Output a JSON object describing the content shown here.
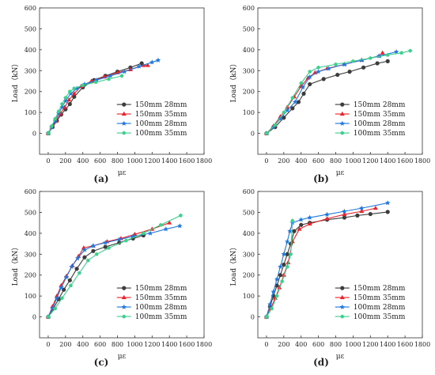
{
  "figure": {
    "colors": {
      "s150_28": "#3c3c3c",
      "s150_35": "#e8232a",
      "s100_28": "#1f77e0",
      "s100_35": "#3ccf8e"
    }
  },
  "chart_data": [
    {
      "type": "line",
      "panel": "(a)",
      "xlabel": "με",
      "ylabel": "Load（kN）",
      "xlim": [
        -100,
        1800
      ],
      "ylim": [
        -100,
        600
      ],
      "xticks": [
        0,
        200,
        400,
        600,
        800,
        1000,
        1200,
        1400,
        1600,
        1800
      ],
      "yticks": [
        0,
        100,
        200,
        300,
        400,
        500,
        600
      ],
      "legend_position": "bottom-right",
      "series": [
        {
          "name": "150mm 28mm",
          "color": "#3c3c3c",
          "marker": "circle",
          "x": [
            0,
            50,
            100,
            150,
            200,
            250,
            300,
            400,
            530,
            660,
            800,
            950,
            1080
          ],
          "y": [
            0,
            30,
            60,
            90,
            115,
            140,
            175,
            220,
            255,
            275,
            295,
            315,
            335
          ]
        },
        {
          "name": "150mm 35mm",
          "color": "#e8232a",
          "marker": "triangle",
          "x": [
            0,
            40,
            90,
            140,
            190,
            240,
            300,
            380,
            500,
            650,
            800,
            950,
            1100,
            1150
          ],
          "y": [
            0,
            30,
            60,
            95,
            125,
            160,
            190,
            225,
            250,
            270,
            290,
            305,
            325,
            325
          ]
        },
        {
          "name": "100mm 28mm",
          "color": "#1f77e0",
          "marker": "star",
          "x": [
            0,
            40,
            80,
            120,
            160,
            200,
            260,
            330,
            420,
            560,
            720,
            880,
            1050,
            1200,
            1270
          ],
          "y": [
            0,
            30,
            60,
            95,
            125,
            155,
            190,
            215,
            235,
            255,
            275,
            295,
            320,
            340,
            350
          ]
        },
        {
          "name": "100mm 35mm",
          "color": "#3ccf8e",
          "marker": "pentagon",
          "x": [
            0,
            40,
            80,
            120,
            160,
            200,
            250,
            300,
            400,
            550,
            700,
            850
          ],
          "y": [
            0,
            35,
            70,
            105,
            140,
            170,
            200,
            215,
            230,
            245,
            260,
            275
          ]
        }
      ]
    },
    {
      "type": "line",
      "panel": "(b)",
      "xlabel": "με",
      "ylabel": "Load（kN）",
      "xlim": [
        -100,
        1800
      ],
      "ylim": [
        -100,
        600
      ],
      "xticks": [
        0,
        200,
        400,
        600,
        800,
        1000,
        1200,
        1400,
        1600,
        1800
      ],
      "yticks": [
        0,
        100,
        200,
        300,
        400,
        500,
        600
      ],
      "legend_position": "bottom-right",
      "series": [
        {
          "name": "150mm 28mm",
          "color": "#3c3c3c",
          "marker": "circle",
          "x": [
            0,
            100,
            200,
            300,
            370,
            430,
            500,
            660,
            820,
            960,
            1120,
            1280,
            1400
          ],
          "y": [
            0,
            30,
            75,
            120,
            150,
            190,
            235,
            260,
            280,
            295,
            315,
            335,
            345
          ]
        },
        {
          "name": "150mm 35mm",
          "color": "#e8232a",
          "marker": "triangle",
          "x": [
            0,
            80,
            160,
            240,
            320,
            400,
            480,
            560,
            700,
            900,
            1100,
            1300,
            1340
          ],
          "y": [
            0,
            35,
            80,
            125,
            175,
            225,
            265,
            290,
            310,
            330,
            350,
            370,
            385
          ]
        },
        {
          "name": "100mm 28mm",
          "color": "#1f77e0",
          "marker": "star",
          "x": [
            0,
            80,
            160,
            240,
            330,
            420,
            500,
            600,
            720,
            900,
            1100,
            1300,
            1500
          ],
          "y": [
            0,
            30,
            70,
            110,
            150,
            220,
            270,
            295,
            310,
            330,
            350,
            370,
            390
          ]
        },
        {
          "name": "100mm 35mm",
          "color": "#3ccf8e",
          "marker": "pentagon",
          "x": [
            0,
            100,
            200,
            300,
            400,
            500,
            600,
            800,
            1000,
            1200,
            1400,
            1560,
            1660
          ],
          "y": [
            0,
            40,
            100,
            170,
            240,
            295,
            315,
            330,
            345,
            360,
            375,
            385,
            395
          ]
        }
      ]
    },
    {
      "type": "line",
      "panel": "(c)",
      "xlabel": "με",
      "ylabel": "Load（kN）",
      "xlim": [
        -100,
        1800
      ],
      "ylim": [
        -100,
        600
      ],
      "xticks": [
        0,
        200,
        400,
        600,
        800,
        1000,
        1200,
        1400,
        1600,
        1800
      ],
      "yticks": [
        0,
        100,
        200,
        300,
        400,
        500,
        600
      ],
      "legend_position": "bottom-right",
      "series": [
        {
          "name": "150mm 28mm",
          "color": "#3c3c3c",
          "marker": "circle",
          "x": [
            0,
            60,
            120,
            180,
            250,
            330,
            420,
            520,
            660,
            820,
            980,
            1100
          ],
          "y": [
            0,
            40,
            85,
            130,
            175,
            230,
            285,
            315,
            335,
            355,
            375,
            390
          ]
        },
        {
          "name": "150mm 35mm",
          "color": "#e8232a",
          "marker": "triangle",
          "x": [
            0,
            50,
            100,
            150,
            210,
            280,
            350,
            410,
            520,
            680,
            840,
            1000,
            1200,
            1400
          ],
          "y": [
            0,
            50,
            100,
            150,
            195,
            245,
            290,
            330,
            340,
            360,
            375,
            395,
            420,
            450
          ]
        },
        {
          "name": "100mm 28mm",
          "color": "#1f77e0",
          "marker": "star",
          "x": [
            0,
            50,
            100,
            150,
            210,
            270,
            340,
            420,
            520,
            660,
            820,
            980,
            1180,
            1360,
            1520
          ],
          "y": [
            0,
            40,
            90,
            140,
            190,
            240,
            280,
            320,
            340,
            355,
            370,
            385,
            400,
            420,
            435
          ]
        },
        {
          "name": "100mm 35mm",
          "color": "#3ccf8e",
          "marker": "pentagon",
          "x": [
            0,
            80,
            160,
            260,
            360,
            460,
            560,
            700,
            900,
            1100,
            1300,
            1530
          ],
          "y": [
            0,
            40,
            90,
            150,
            210,
            270,
            300,
            330,
            365,
            400,
            440,
            485
          ]
        }
      ]
    },
    {
      "type": "line",
      "panel": "(d)",
      "xlabel": "με",
      "ylabel": "Load（kN）",
      "xlim": [
        -100,
        1800
      ],
      "ylim": [
        -100,
        600
      ],
      "xticks": [
        0,
        200,
        400,
        600,
        800,
        1000,
        1200,
        1400,
        1600,
        1800
      ],
      "yticks": [
        0,
        100,
        200,
        300,
        400,
        500,
        600
      ],
      "legend_position": "bottom-right",
      "series": [
        {
          "name": "150mm 28mm",
          "color": "#3c3c3c",
          "marker": "circle",
          "x": [
            0,
            40,
            80,
            120,
            160,
            200,
            240,
            280,
            320,
            400,
            500,
            700,
            900,
            1050,
            1200,
            1400
          ],
          "y": [
            0,
            50,
            100,
            150,
            200,
            250,
            300,
            350,
            410,
            440,
            450,
            465,
            475,
            485,
            492,
            502
          ]
        },
        {
          "name": "150mm 35mm",
          "color": "#e8232a",
          "marker": "triangle",
          "x": [
            0,
            50,
            100,
            150,
            200,
            250,
            300,
            380,
            500,
            700,
            900,
            1100,
            1260
          ],
          "y": [
            0,
            40,
            90,
            140,
            200,
            260,
            360,
            420,
            445,
            470,
            490,
            505,
            520
          ]
        },
        {
          "name": "100mm 28mm",
          "color": "#1f77e0",
          "marker": "star",
          "x": [
            0,
            40,
            80,
            120,
            160,
            200,
            240,
            270,
            300,
            400,
            500,
            700,
            900,
            1100,
            1400
          ],
          "y": [
            0,
            60,
            120,
            180,
            240,
            300,
            360,
            410,
            450,
            465,
            475,
            490,
            505,
            520,
            545
          ]
        },
        {
          "name": "100mm 35mm",
          "color": "#3ccf8e",
          "marker": "pentagon",
          "x": [
            0,
            60,
            120,
            180,
            240,
            280,
            300
          ],
          "y": [
            0,
            40,
            100,
            170,
            240,
            300,
            460
          ]
        }
      ]
    }
  ]
}
